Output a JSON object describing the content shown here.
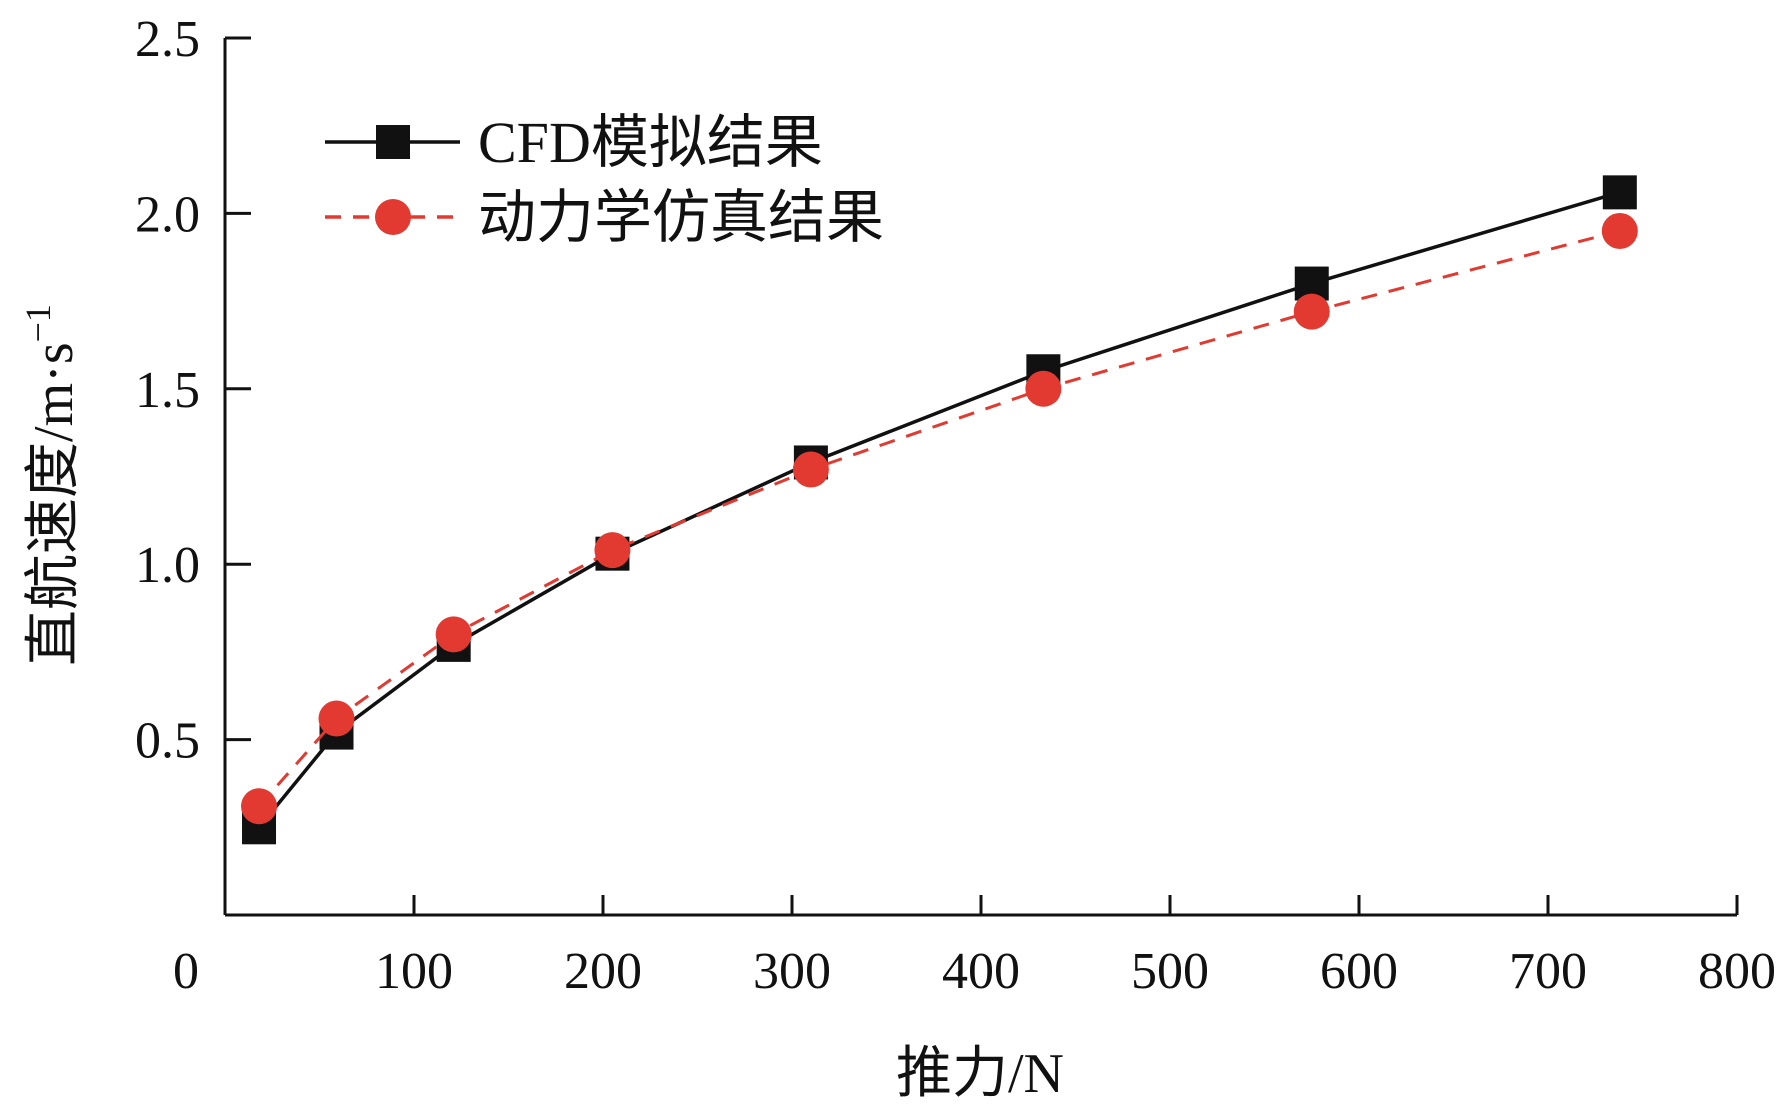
{
  "chart_data": {
    "type": "line",
    "title": "",
    "xlabel": "推力/N",
    "ylabel": "直航速度/m·s",
    "ylabel_sup": "−1",
    "xlim": [
      0,
      800
    ],
    "ylim": [
      0,
      2.5
    ],
    "x_axis_baseline_value": 0,
    "xticks": [
      0,
      100,
      200,
      300,
      400,
      500,
      600,
      700,
      800
    ],
    "xtick_labels": [
      "0",
      "100",
      "200",
      "300",
      "400",
      "500",
      "600",
      "700",
      "800"
    ],
    "yticks": [
      0.5,
      1.0,
      1.5,
      2.0,
      2.5
    ],
    "ytick_labels": [
      "0.5",
      "1.0",
      "1.5",
      "2.0",
      "2.5"
    ],
    "grid": false,
    "legend_position": "top-left",
    "series": [
      {
        "name": "CFD模拟结果",
        "color": "#111111",
        "line_style": "solid",
        "marker": "square",
        "x": [
          18,
          59,
          121,
          205,
          310,
          433,
          575,
          738
        ],
        "y": [
          0.25,
          0.52,
          0.77,
          1.03,
          1.29,
          1.55,
          1.8,
          2.06
        ]
      },
      {
        "name": "动力学仿真结果",
        "color": "#e23a31",
        "line_style": "dashed",
        "marker": "circle",
        "x": [
          18,
          59,
          121,
          205,
          310,
          433,
          575,
          738
        ],
        "y": [
          0.31,
          0.56,
          0.8,
          1.04,
          1.27,
          1.5,
          1.72,
          1.95
        ]
      }
    ]
  }
}
